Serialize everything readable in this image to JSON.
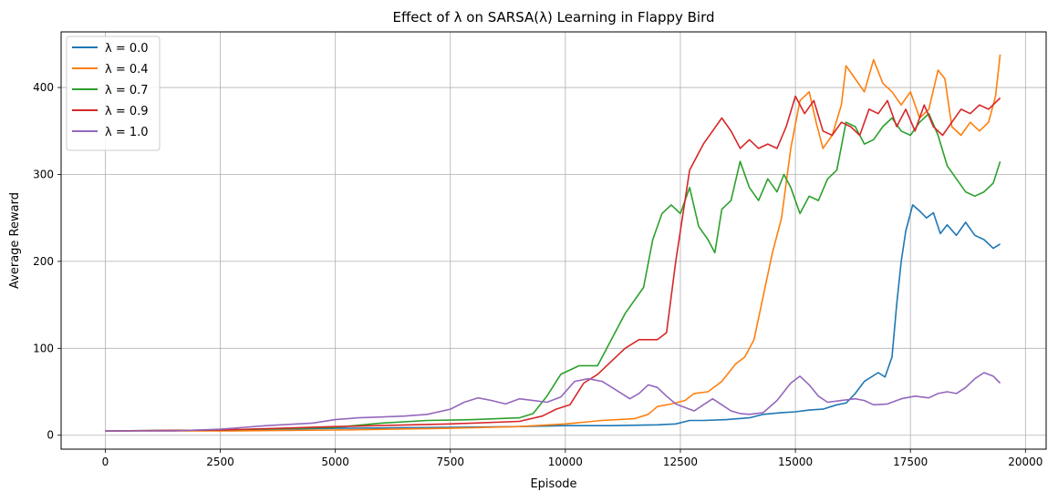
{
  "chart_data": {
    "type": "line",
    "title": "Effect of λ on SARSA(λ) Learning in Flappy Bird",
    "xlabel": "Episode",
    "ylabel": "Average Reward",
    "xlim": [
      -960,
      20450
    ],
    "ylim": [
      -16,
      464
    ],
    "xticks": [
      0,
      2500,
      5000,
      7500,
      10000,
      12500,
      15000,
      17500,
      20000
    ],
    "yticks": [
      0,
      100,
      200,
      300,
      400
    ],
    "grid": true,
    "legend_position": "top-left",
    "series": [
      {
        "name": "λ = 0.0",
        "color": "#1f77b4",
        "points": [
          [
            0,
            5
          ],
          [
            2500,
            6
          ],
          [
            5000,
            8
          ],
          [
            7500,
            9
          ],
          [
            9000,
            10
          ],
          [
            10000,
            11
          ],
          [
            11000,
            11
          ],
          [
            12000,
            12
          ],
          [
            12400,
            13
          ],
          [
            12700,
            17
          ],
          [
            13000,
            17
          ],
          [
            13500,
            18
          ],
          [
            14000,
            20
          ],
          [
            14300,
            24
          ],
          [
            14700,
            26
          ],
          [
            15000,
            27
          ],
          [
            15300,
            29
          ],
          [
            15600,
            30
          ],
          [
            15900,
            35
          ],
          [
            16100,
            37
          ],
          [
            16300,
            48
          ],
          [
            16500,
            62
          ],
          [
            16800,
            72
          ],
          [
            16950,
            67
          ],
          [
            17100,
            90
          ],
          [
            17200,
            150
          ],
          [
            17300,
            200
          ],
          [
            17400,
            235
          ],
          [
            17550,
            265
          ],
          [
            17700,
            258
          ],
          [
            17850,
            250
          ],
          [
            18000,
            256
          ],
          [
            18150,
            232
          ],
          [
            18300,
            242
          ],
          [
            18500,
            230
          ],
          [
            18700,
            245
          ],
          [
            18900,
            230
          ],
          [
            19100,
            225
          ],
          [
            19300,
            215
          ],
          [
            19450,
            220
          ]
        ]
      },
      {
        "name": "λ = 0.4",
        "color": "#ff7f0e",
        "points": [
          [
            0,
            5
          ],
          [
            2500,
            5
          ],
          [
            5000,
            6
          ],
          [
            7500,
            8
          ],
          [
            9000,
            10
          ],
          [
            10000,
            13
          ],
          [
            10800,
            17
          ],
          [
            11500,
            19
          ],
          [
            11800,
            24
          ],
          [
            12000,
            33
          ],
          [
            12300,
            36
          ],
          [
            12600,
            40
          ],
          [
            12800,
            48
          ],
          [
            13100,
            50
          ],
          [
            13400,
            62
          ],
          [
            13700,
            82
          ],
          [
            13900,
            90
          ],
          [
            14100,
            110
          ],
          [
            14300,
            160
          ],
          [
            14500,
            210
          ],
          [
            14700,
            250
          ],
          [
            14900,
            330
          ],
          [
            15100,
            385
          ],
          [
            15300,
            395
          ],
          [
            15450,
            360
          ],
          [
            15600,
            330
          ],
          [
            15800,
            345
          ],
          [
            16000,
            380
          ],
          [
            16100,
            425
          ],
          [
            16300,
            410
          ],
          [
            16500,
            395
          ],
          [
            16700,
            432
          ],
          [
            16900,
            405
          ],
          [
            17100,
            395
          ],
          [
            17300,
            380
          ],
          [
            17500,
            395
          ],
          [
            17700,
            365
          ],
          [
            17900,
            375
          ],
          [
            18100,
            420
          ],
          [
            18250,
            410
          ],
          [
            18400,
            355
          ],
          [
            18600,
            345
          ],
          [
            18800,
            360
          ],
          [
            19000,
            350
          ],
          [
            19200,
            360
          ],
          [
            19350,
            390
          ],
          [
            19450,
            438
          ]
        ]
      },
      {
        "name": "λ = 0.7",
        "color": "#2ca02c",
        "points": [
          [
            0,
            5
          ],
          [
            2500,
            6
          ],
          [
            5000,
            9
          ],
          [
            6000,
            14
          ],
          [
            7000,
            17
          ],
          [
            8000,
            18
          ],
          [
            8500,
            19
          ],
          [
            9000,
            20
          ],
          [
            9300,
            25
          ],
          [
            9600,
            45
          ],
          [
            9900,
            70
          ],
          [
            10300,
            80
          ],
          [
            10700,
            80
          ],
          [
            11000,
            110
          ],
          [
            11300,
            140
          ],
          [
            11700,
            170
          ],
          [
            11900,
            225
          ],
          [
            12100,
            255
          ],
          [
            12300,
            265
          ],
          [
            12500,
            255
          ],
          [
            12700,
            285
          ],
          [
            12900,
            240
          ],
          [
            13100,
            225
          ],
          [
            13250,
            210
          ],
          [
            13400,
            260
          ],
          [
            13600,
            270
          ],
          [
            13800,
            315
          ],
          [
            14000,
            285
          ],
          [
            14200,
            270
          ],
          [
            14400,
            295
          ],
          [
            14600,
            280
          ],
          [
            14750,
            300
          ],
          [
            14900,
            285
          ],
          [
            15100,
            255
          ],
          [
            15300,
            275
          ],
          [
            15500,
            270
          ],
          [
            15700,
            295
          ],
          [
            15900,
            305
          ],
          [
            16100,
            360
          ],
          [
            16300,
            355
          ],
          [
            16500,
            335
          ],
          [
            16700,
            340
          ],
          [
            16900,
            355
          ],
          [
            17100,
            365
          ],
          [
            17300,
            350
          ],
          [
            17500,
            345
          ],
          [
            17700,
            360
          ],
          [
            17900,
            370
          ],
          [
            18100,
            345
          ],
          [
            18300,
            310
          ],
          [
            18500,
            295
          ],
          [
            18700,
            280
          ],
          [
            18900,
            275
          ],
          [
            19100,
            280
          ],
          [
            19300,
            290
          ],
          [
            19450,
            315
          ]
        ]
      },
      {
        "name": "λ = 0.9",
        "color": "#d62728",
        "points": [
          [
            0,
            5
          ],
          [
            2500,
            6
          ],
          [
            5000,
            10
          ],
          [
            7500,
            13
          ],
          [
            9000,
            16
          ],
          [
            9500,
            22
          ],
          [
            9800,
            30
          ],
          [
            10100,
            35
          ],
          [
            10400,
            60
          ],
          [
            10700,
            70
          ],
          [
            11000,
            85
          ],
          [
            11300,
            100
          ],
          [
            11600,
            110
          ],
          [
            11800,
            110
          ],
          [
            12000,
            110
          ],
          [
            12200,
            118
          ],
          [
            12400,
            200
          ],
          [
            12700,
            305
          ],
          [
            13000,
            335
          ],
          [
            13200,
            350
          ],
          [
            13400,
            365
          ],
          [
            13600,
            350
          ],
          [
            13800,
            330
          ],
          [
            14000,
            340
          ],
          [
            14200,
            330
          ],
          [
            14400,
            335
          ],
          [
            14600,
            330
          ],
          [
            14800,
            355
          ],
          [
            15000,
            390
          ],
          [
            15200,
            370
          ],
          [
            15400,
            385
          ],
          [
            15600,
            350
          ],
          [
            15800,
            345
          ],
          [
            16000,
            360
          ],
          [
            16200,
            355
          ],
          [
            16400,
            345
          ],
          [
            16600,
            375
          ],
          [
            16800,
            370
          ],
          [
            17000,
            385
          ],
          [
            17200,
            355
          ],
          [
            17400,
            375
          ],
          [
            17600,
            350
          ],
          [
            17800,
            380
          ],
          [
            18000,
            355
          ],
          [
            18200,
            345
          ],
          [
            18400,
            360
          ],
          [
            18600,
            375
          ],
          [
            18800,
            370
          ],
          [
            19000,
            380
          ],
          [
            19200,
            375
          ],
          [
            19450,
            388
          ]
        ]
      },
      {
        "name": "λ = 1.0",
        "color": "#9467bd",
        "points": [
          [
            0,
            5
          ],
          [
            1500,
            5
          ],
          [
            2500,
            7
          ],
          [
            3500,
            11
          ],
          [
            4500,
            14
          ],
          [
            5000,
            18
          ],
          [
            5500,
            20
          ],
          [
            6000,
            21
          ],
          [
            6500,
            22
          ],
          [
            7000,
            24
          ],
          [
            7500,
            30
          ],
          [
            7800,
            38
          ],
          [
            8100,
            43
          ],
          [
            8400,
            40
          ],
          [
            8700,
            36
          ],
          [
            9000,
            42
          ],
          [
            9300,
            40
          ],
          [
            9600,
            38
          ],
          [
            9900,
            44
          ],
          [
            10200,
            62
          ],
          [
            10500,
            65
          ],
          [
            10800,
            62
          ],
          [
            11100,
            52
          ],
          [
            11400,
            42
          ],
          [
            11600,
            48
          ],
          [
            11800,
            58
          ],
          [
            12000,
            55
          ],
          [
            12200,
            45
          ],
          [
            12400,
            36
          ],
          [
            12600,
            32
          ],
          [
            12800,
            28
          ],
          [
            13000,
            35
          ],
          [
            13200,
            42
          ],
          [
            13400,
            35
          ],
          [
            13600,
            28
          ],
          [
            13800,
            25
          ],
          [
            14000,
            24
          ],
          [
            14300,
            26
          ],
          [
            14600,
            40
          ],
          [
            14900,
            60
          ],
          [
            15100,
            68
          ],
          [
            15300,
            58
          ],
          [
            15500,
            45
          ],
          [
            15700,
            38
          ],
          [
            16000,
            40
          ],
          [
            16300,
            42
          ],
          [
            16500,
            40
          ],
          [
            16700,
            35
          ],
          [
            17000,
            36
          ],
          [
            17300,
            42
          ],
          [
            17600,
            45
          ],
          [
            17900,
            43
          ],
          [
            18100,
            48
          ],
          [
            18300,
            50
          ],
          [
            18500,
            48
          ],
          [
            18700,
            55
          ],
          [
            18900,
            65
          ],
          [
            19100,
            72
          ],
          [
            19300,
            68
          ],
          [
            19450,
            60
          ]
        ]
      }
    ]
  }
}
